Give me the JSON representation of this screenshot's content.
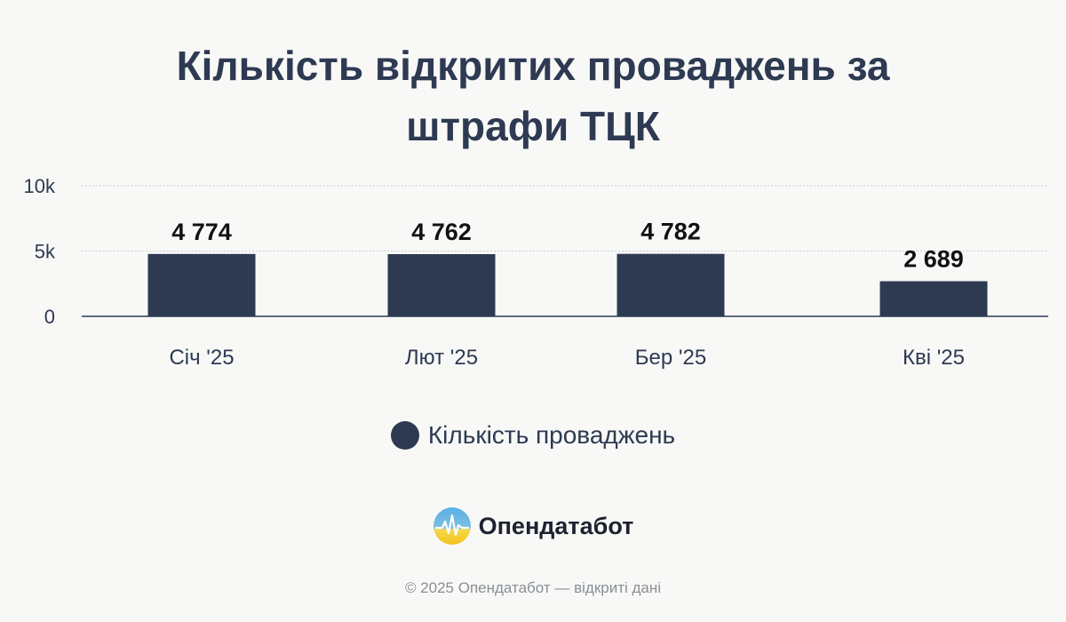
{
  "title": "Кількість відкритих проваджень за\nштрафи ТЦК",
  "chart_data": {
    "type": "bar",
    "categories": [
      "Січ '25",
      "Лют '25",
      "Бер '25",
      "Кві '25"
    ],
    "series": [
      {
        "name": "Кількість проваджень",
        "values": [
          4774,
          4762,
          4782,
          2689
        ]
      }
    ],
    "data_labels": [
      "4 774",
      "4 762",
      "4 782",
      "2 689"
    ],
    "y_ticks": [
      "0",
      "5k",
      "10k"
    ],
    "ylim": [
      0,
      10000
    ],
    "grid": true,
    "legend_position": "bottom",
    "bar_color": "#2e3a52"
  },
  "brand": {
    "name": "Опендатабот"
  },
  "footer": {
    "text": "© 2025 Опендатабот — відкриті дані"
  }
}
